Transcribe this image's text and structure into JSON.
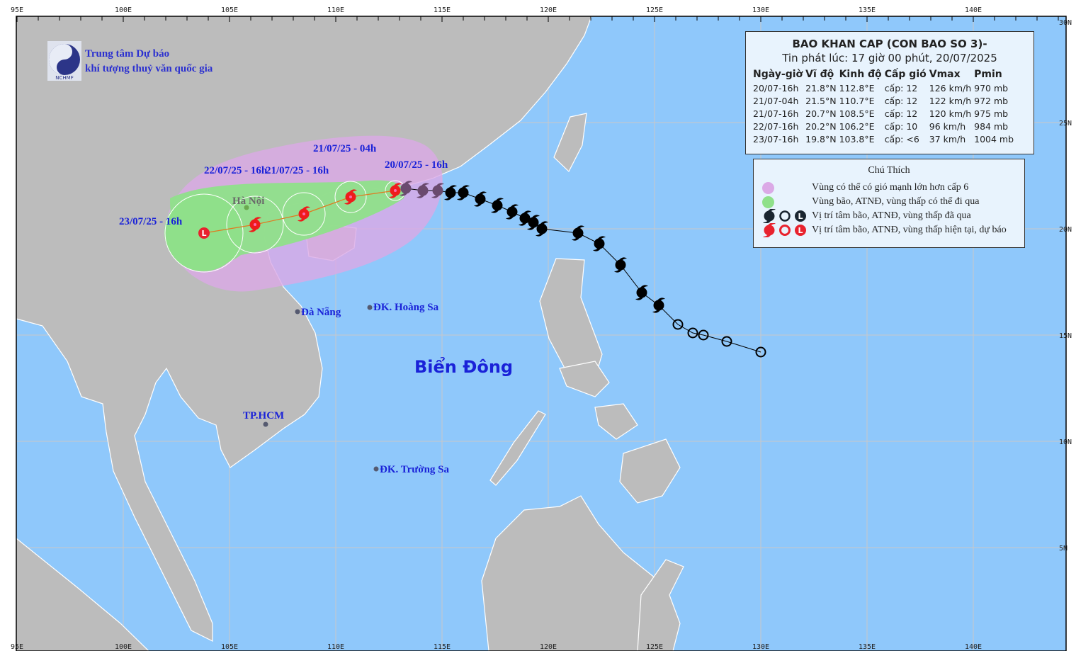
{
  "map": {
    "lon_ticks": [
      "95E",
      "100E",
      "105E",
      "110E",
      "115E",
      "120E",
      "125E",
      "130E",
      "135E",
      "140E"
    ],
    "lat_ticks": [
      "30N",
      "25N",
      "20N",
      "15N",
      "10N",
      "5N"
    ],
    "lon_range": [
      95,
      144.4
    ],
    "lat_range": [
      0,
      30
    ],
    "colors": {
      "sea": "#8fc8fb",
      "land": "#bcbcbc",
      "wind_zone": "#dba9e6",
      "storm_zone": "#8fe08a",
      "track_past": "#000000",
      "forecast": "#ee1c1c",
      "label": "#1a22d8"
    },
    "sea_label": "Biển Đông",
    "places": [
      {
        "name": "Hà Nội",
        "lon": 105.8,
        "lat": 21.0
      },
      {
        "name": "Đà Nẵng",
        "lon": 108.2,
        "lat": 16.1
      },
      {
        "name": "ĐK. Hoàng Sa",
        "lon": 111.6,
        "lat": 16.3
      },
      {
        "name": "TP.HCM",
        "lon": 106.7,
        "lat": 10.8
      },
      {
        "name": "ĐK. Trường Sa",
        "lon": 111.9,
        "lat": 8.7
      }
    ]
  },
  "agency": {
    "line1": "Trung tâm Dự báo",
    "line2": "khí tượng thuỷ văn quốc gia",
    "logo_text": "NCHMF"
  },
  "bulletin": {
    "title": "BAO KHAN CAP (CON BAO SO 3)-",
    "issued": "Tin phát lúc: 17 giờ 00 phút, 20/07/2025",
    "headers": [
      "Ngày-giờ",
      "Vĩ độ",
      "Kinh độ",
      "Cấp gió",
      "Vmax",
      "Pmin"
    ],
    "rows": [
      [
        "20/07-16h",
        "21.8°N",
        "112.8°E",
        "cấp: 12",
        "126 km/h",
        "970 mb"
      ],
      [
        "21/07-04h",
        "21.5°N",
        "110.7°E",
        "cấp: 12",
        "122 km/h",
        "972 mb"
      ],
      [
        "21/07-16h",
        "20.7°N",
        "108.5°E",
        "cấp: 12",
        "120 km/h",
        "975 mb"
      ],
      [
        "22/07-16h",
        "20.2°N",
        "106.2°E",
        "cấp: 10",
        "96 km/h",
        "984 mb"
      ],
      [
        "23/07-16h",
        "19.8°N",
        "103.8°E",
        "cấp: <6",
        "37 km/h",
        "1004 mb"
      ]
    ]
  },
  "legend": {
    "title": "Chú Thích",
    "items": [
      {
        "label": "Vùng có thể có gió mạnh lớn hơn cấp 6",
        "symbol": "pink-circle"
      },
      {
        "label": "Vùng bão, ATNĐ, vùng thấp có thể đi qua",
        "symbol": "green-circle"
      },
      {
        "label": "Vị trí tâm bão, ATNĐ, vùng thấp đã qua",
        "symbol": "black-typhoon-depression-low"
      },
      {
        "label": "Vị trí tâm bão, ATNĐ, vùng thấp hiện tại, dự báo",
        "symbol": "red-typhoon-depression-low"
      }
    ]
  },
  "track_past": [
    {
      "lon": 130.0,
      "lat": 14.2,
      "type": "depression"
    },
    {
      "lon": 128.4,
      "lat": 14.7,
      "type": "depression"
    },
    {
      "lon": 127.3,
      "lat": 15.0,
      "type": "depression"
    },
    {
      "lon": 126.8,
      "lat": 15.1,
      "type": "depression"
    },
    {
      "lon": 126.1,
      "lat": 15.5,
      "type": "depression"
    },
    {
      "lon": 125.2,
      "lat": 16.4,
      "type": "typhoon"
    },
    {
      "lon": 124.4,
      "lat": 17.0,
      "type": "typhoon"
    },
    {
      "lon": 123.4,
      "lat": 18.3,
      "type": "typhoon"
    },
    {
      "lon": 122.4,
      "lat": 19.3,
      "type": "typhoon"
    },
    {
      "lon": 121.4,
      "lat": 19.8,
      "type": "typhoon"
    },
    {
      "lon": 119.7,
      "lat": 20.0,
      "type": "typhoon"
    },
    {
      "lon": 119.3,
      "lat": 20.3,
      "type": "typhoon"
    },
    {
      "lon": 118.9,
      "lat": 20.5,
      "type": "typhoon"
    },
    {
      "lon": 118.3,
      "lat": 20.8,
      "type": "typhoon"
    },
    {
      "lon": 117.6,
      "lat": 21.1,
      "type": "typhoon"
    },
    {
      "lon": 116.8,
      "lat": 21.4,
      "type": "typhoon"
    },
    {
      "lon": 116.0,
      "lat": 21.7,
      "type": "typhoon"
    },
    {
      "lon": 115.4,
      "lat": 21.7,
      "type": "typhoon"
    },
    {
      "lon": 114.8,
      "lat": 21.8,
      "type": "typhoon"
    },
    {
      "lon": 114.1,
      "lat": 21.8,
      "type": "typhoon"
    },
    {
      "lon": 113.3,
      "lat": 21.9,
      "type": "typhoon"
    }
  ],
  "track_forecast": [
    {
      "label": "20/07/25 - 16h",
      "lon": 112.8,
      "lat": 21.8,
      "type": "typhoon"
    },
    {
      "label": "21/07/25 - 04h",
      "lon": 110.7,
      "lat": 21.5,
      "type": "typhoon"
    },
    {
      "label": "21/07/25 - 16h",
      "lon": 108.5,
      "lat": 20.7,
      "type": "typhoon"
    },
    {
      "label": "22/07/25 - 16h",
      "lon": 106.2,
      "lat": 20.2,
      "type": "typhoon"
    },
    {
      "label": "23/07/25 - 16h",
      "lon": 103.8,
      "lat": 19.8,
      "type": "low"
    }
  ]
}
